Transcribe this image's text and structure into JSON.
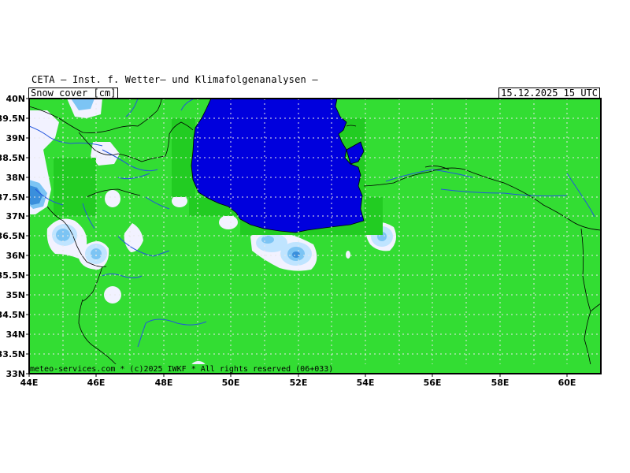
{
  "header": {
    "title": "CETA — Inst. f. Wetter— und Klimafolgenanalysen —",
    "product": "Snow_cover [cm]",
    "valid_time": "15.12.2025 15 UTC"
  },
  "credit": "meteo-services.com * (c)2025 IWKF * All rights reserved (06+033)",
  "axes": {
    "lat_labels": [
      "40N",
      "39.5N",
      "39N",
      "38.5N",
      "38N",
      "37.5N",
      "37N",
      "36.5N",
      "36N",
      "35.5N",
      "35N",
      "34.5N",
      "34N",
      "33.5N",
      "33N"
    ],
    "lon_labels": [
      "44E",
      "46E",
      "48E",
      "50E",
      "52E",
      "54E",
      "56E",
      "58E",
      "60E"
    ]
  },
  "colors": {
    "land_no_snow": "#33dd33",
    "water": "#0000dd",
    "snow_trace": "#f2f2ff",
    "snow_light": "#bfe4ff",
    "snow_medium": "#7cc4f4",
    "snow_heavy": "#3a8fdc",
    "border": "#000000",
    "river": "#2255dd",
    "grid": "#dddddd"
  }
}
